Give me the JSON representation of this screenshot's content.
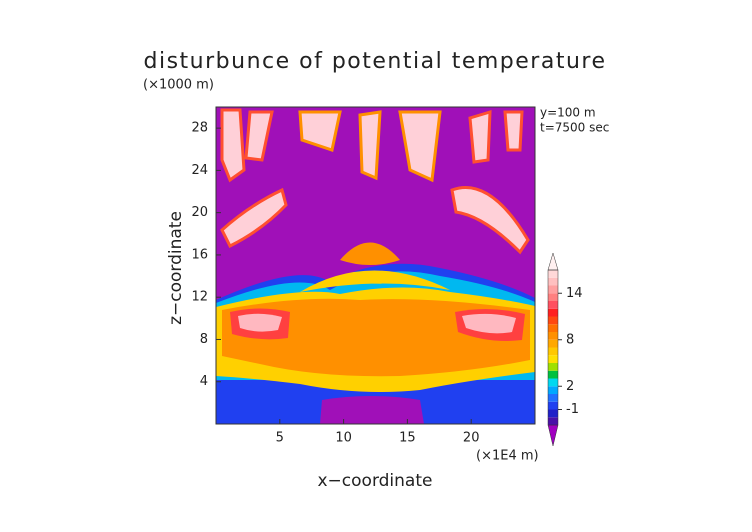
{
  "chart_data": {
    "type": "contour",
    "title": "disturbunce of potential temperature",
    "y_unit": "(×1000 m)",
    "x_unit": "(×1E4 m)",
    "annotations": [
      "y=100 m",
      "t=7500 sec"
    ],
    "xlabel": "x−coordinate",
    "ylabel": "z−coordinate",
    "xlim": [
      0,
      25
    ],
    "xticks": [
      5,
      10,
      15,
      20
    ],
    "ylim": [
      0,
      30
    ],
    "yticks": [
      4,
      8,
      12,
      16,
      20,
      24,
      28
    ],
    "colorbar": {
      "lim": [
        -3,
        17
      ],
      "ticks": [
        -1,
        2,
        8,
        14
      ],
      "colors": [
        "#a000c0",
        "#4a10a8",
        "#2020c8",
        "#2040f0",
        "#2070ff",
        "#00a8ff",
        "#00d8f0",
        "#00c040",
        "#a0e000",
        "#ffe000",
        "#ffc800",
        "#ffa800",
        "#ff9000",
        "#ff7000",
        "#ff4810",
        "#ff2020",
        "#ff5060",
        "#ff8080",
        "#ffa0a0",
        "#ffc0c0",
        "#ffd8d8",
        "#fff0f0"
      ]
    }
  }
}
